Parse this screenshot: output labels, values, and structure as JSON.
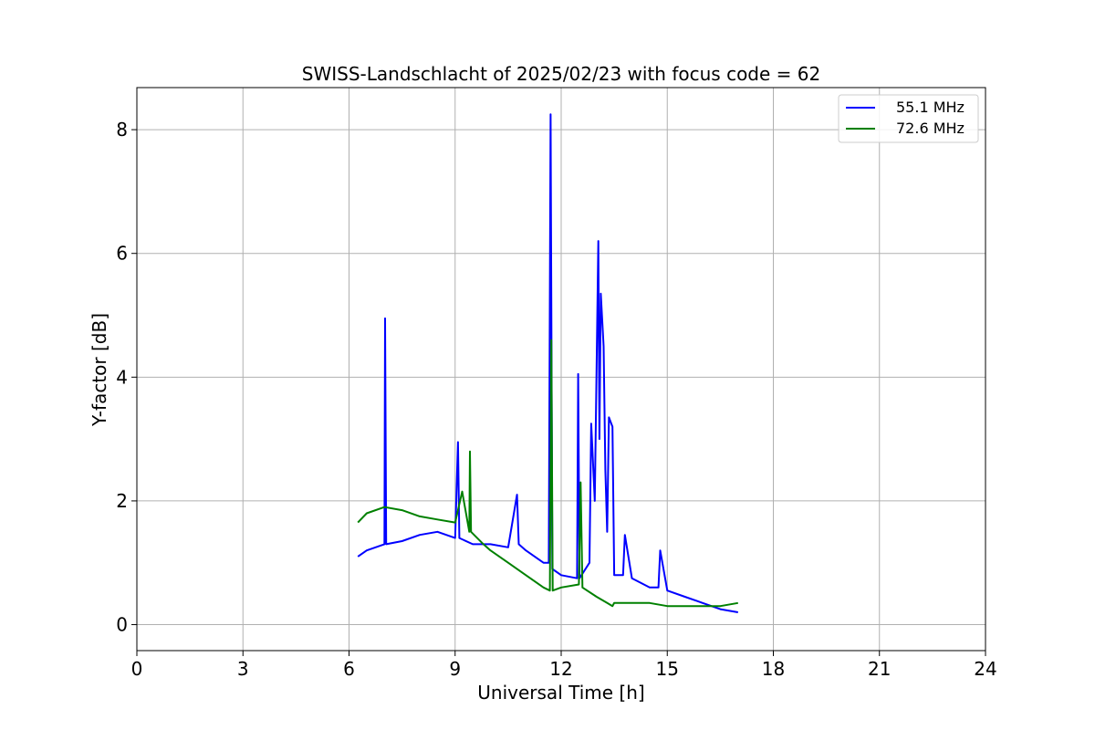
{
  "chart_data": {
    "type": "line",
    "title": "SWISS-Landschlacht of 2025/02/23 with focus code = 62",
    "xlabel": "Universal Time [h]",
    "ylabel": "Y-factor [dB]",
    "xlim": [
      0,
      24
    ],
    "ylim": [
      -0.42,
      8.68
    ],
    "xticks": [
      0,
      3,
      6,
      9,
      12,
      15,
      18,
      21,
      24
    ],
    "xtick_labels": [
      "0",
      "3",
      "6",
      "9",
      "12",
      "15",
      "18",
      "21",
      "24"
    ],
    "yticks": [
      0,
      2,
      4,
      6,
      8
    ],
    "ytick_labels": [
      "0",
      "2",
      "4",
      "6",
      "8"
    ],
    "grid": true,
    "legend_position": "top-right",
    "series": [
      {
        "name": "55.1 MHz",
        "color": "#0000ff",
        "x": [
          6.25,
          6.5,
          7.0,
          7.02,
          7.05,
          7.5,
          8.0,
          8.5,
          9.0,
          9.08,
          9.12,
          9.5,
          10.0,
          10.5,
          10.75,
          10.8,
          11.0,
          11.5,
          11.65,
          11.7,
          11.75,
          12.0,
          12.45,
          12.48,
          12.52,
          12.8,
          12.85,
          12.95,
          13.05,
          13.08,
          13.12,
          13.2,
          13.25,
          13.3,
          13.35,
          13.45,
          13.5,
          13.75,
          13.8,
          14.0,
          14.5,
          14.75,
          14.8,
          15.0,
          15.5,
          16.0,
          16.5,
          17.0
        ],
        "y": [
          1.1,
          1.2,
          1.3,
          4.95,
          1.3,
          1.35,
          1.45,
          1.5,
          1.4,
          2.95,
          1.4,
          1.3,
          1.3,
          1.25,
          2.1,
          1.3,
          1.2,
          1.0,
          1.0,
          8.25,
          0.9,
          0.8,
          0.75,
          4.05,
          0.75,
          1.0,
          3.25,
          2.0,
          6.2,
          3.0,
          5.35,
          4.5,
          2.5,
          1.5,
          3.35,
          3.2,
          0.8,
          0.8,
          1.45,
          0.75,
          0.6,
          0.6,
          1.2,
          0.55,
          0.45,
          0.35,
          0.25,
          0.2
        ]
      },
      {
        "name": "72.6 MHz",
        "color": "#008000",
        "x": [
          6.25,
          6.5,
          7.0,
          7.5,
          8.0,
          8.5,
          9.0,
          9.2,
          9.4,
          9.42,
          9.45,
          9.8,
          10.0,
          10.5,
          11.0,
          11.5,
          11.68,
          11.72,
          11.76,
          12.0,
          12.5,
          12.55,
          12.6,
          13.0,
          13.3,
          13.45,
          13.5,
          14.0,
          14.5,
          15.0,
          15.5,
          16.0,
          16.5,
          17.0
        ],
        "y": [
          1.65,
          1.8,
          1.9,
          1.85,
          1.75,
          1.7,
          1.65,
          2.15,
          1.5,
          2.8,
          1.5,
          1.3,
          1.2,
          1.0,
          0.8,
          0.6,
          0.55,
          4.6,
          0.55,
          0.6,
          0.65,
          2.3,
          0.6,
          0.45,
          0.35,
          0.3,
          0.35,
          0.35,
          0.35,
          0.3,
          0.3,
          0.3,
          0.3,
          0.35
        ]
      }
    ]
  }
}
